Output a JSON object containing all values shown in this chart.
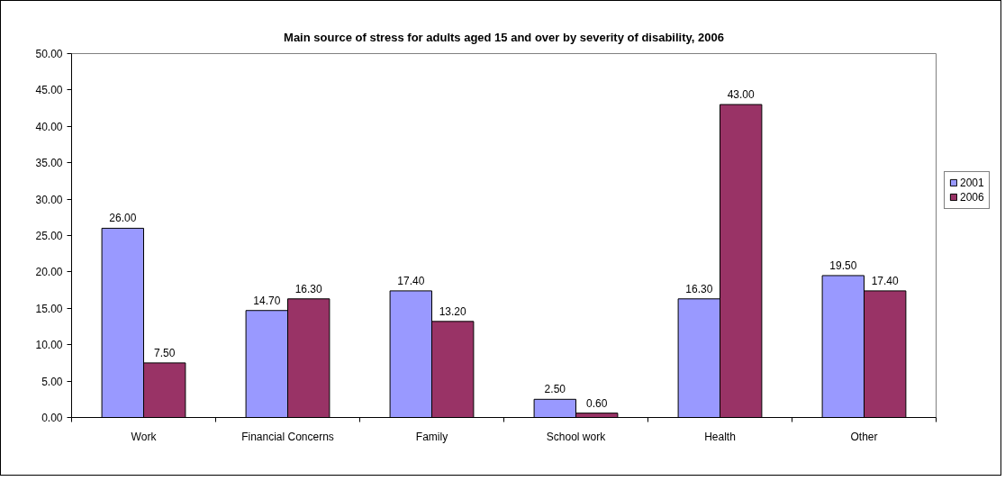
{
  "chart_data": {
    "type": "bar",
    "title": "Main source of stress for adults aged 15 and over by severity of disability, 2006",
    "categories": [
      "Work",
      "Financial Concerns",
      "Family",
      "School work",
      "Health",
      "Other"
    ],
    "series": [
      {
        "name": "2001",
        "color": "#9999ff",
        "values": [
          26.0,
          14.7,
          17.4,
          2.5,
          16.3,
          19.5
        ],
        "value_labels": [
          "26.00",
          "14.70",
          "17.40",
          "2.50",
          "16.30",
          "19.50"
        ]
      },
      {
        "name": "2006",
        "color": "#993366",
        "values": [
          7.5,
          16.3,
          13.2,
          0.6,
          43.0,
          17.4
        ],
        "value_labels": [
          "7.50",
          "16.30",
          "13.20",
          "0.60",
          "43.00",
          "17.40"
        ]
      }
    ],
    "ylim": [
      0,
      50
    ],
    "yticks": [
      {
        "value": 0,
        "label": "0.00"
      },
      {
        "value": 5,
        "label": "5.00"
      },
      {
        "value": 10,
        "label": "10.00"
      },
      {
        "value": 15,
        "label": "15.00"
      },
      {
        "value": 20,
        "label": "20.00"
      },
      {
        "value": 25,
        "label": "25.00"
      },
      {
        "value": 30,
        "label": "30.00"
      },
      {
        "value": 35,
        "label": "35.00"
      },
      {
        "value": 40,
        "label": "40.00"
      },
      {
        "value": 45,
        "label": "45.00"
      },
      {
        "value": 50,
        "label": "50.00"
      }
    ],
    "legend": "right"
  }
}
